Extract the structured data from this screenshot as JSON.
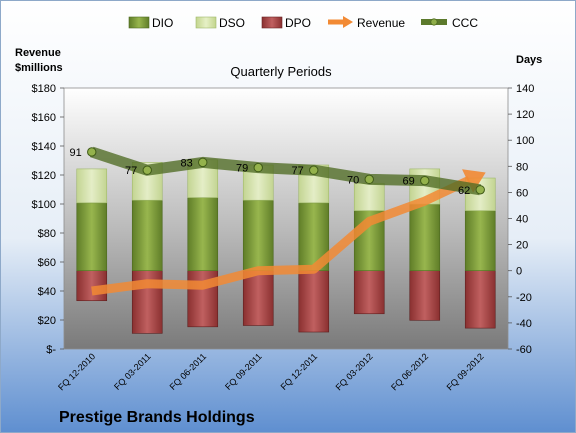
{
  "chart_data": {
    "type": "bar",
    "title": "Quarterly Periods",
    "caption": "Prestige Brands Holdings",
    "y_left_label": [
      "Revenue",
      "$millions"
    ],
    "y_right_label": "Days",
    "y_left_ticks": [
      "$-",
      "$20",
      "$40",
      "$60",
      "$80",
      "$100",
      "$120",
      "$140",
      "$160",
      "$180"
    ],
    "y_right_ticks": [
      "-60",
      "-40",
      "-20",
      "0",
      "20",
      "40",
      "60",
      "80",
      "100",
      "120",
      "140"
    ],
    "ylim_left": [
      0,
      180
    ],
    "ylim_right": [
      -60,
      140
    ],
    "categories": [
      "FQ 12-2010",
      "FQ 03-2011",
      "FQ 06-2011",
      "FQ 09-2011",
      "FQ 12-2011",
      "FQ 03-2012",
      "FQ 06-2012",
      "FQ 09-2012"
    ],
    "series": [
      {
        "name": "DIO",
        "axis": "right",
        "kind": "stacked-bar",
        "color": "#7a9a3a",
        "values": [
          52,
          54,
          56,
          54,
          52,
          46,
          51,
          46
        ]
      },
      {
        "name": "DSO",
        "axis": "right",
        "kind": "stacked-bar",
        "color": "#cfe0a0",
        "values": [
          26,
          29,
          29,
          27,
          29,
          21,
          27,
          25
        ]
      },
      {
        "name": "DPO",
        "axis": "right",
        "kind": "negative-bar",
        "color": "#a84848",
        "values": [
          -23,
          -48,
          -43,
          -42,
          -47,
          -33,
          -38,
          -44
        ]
      },
      {
        "name": "Revenue",
        "axis": "left",
        "kind": "arrow-line",
        "color": "#f28a34",
        "values": [
          40,
          45,
          44,
          54,
          55,
          88,
          102,
          120
        ]
      },
      {
        "name": "CCC",
        "axis": "right",
        "kind": "line",
        "color": "#5c7a2c",
        "values": [
          91,
          77,
          83,
          79,
          77,
          70,
          69,
          62
        ]
      }
    ],
    "ccc_labels": [
      "91",
      "77",
      "83",
      "79",
      "77",
      "70",
      "69",
      "62"
    ],
    "legend_position": "top"
  }
}
